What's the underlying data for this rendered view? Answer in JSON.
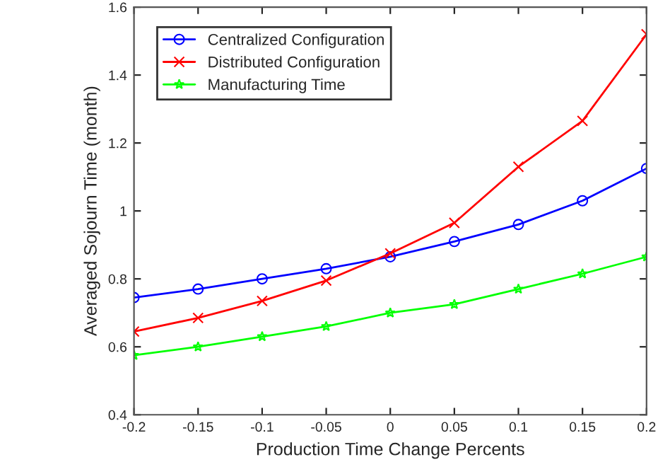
{
  "chart_data": {
    "type": "line",
    "xlabel": "Production Time Change Percents",
    "ylabel": "Averaged Sojourn Time (month)",
    "x": [
      -0.2,
      -0.15,
      -0.1,
      -0.05,
      0,
      0.05,
      0.1,
      0.15,
      0.2
    ],
    "series": [
      {
        "name": "Centralized Configuration",
        "color": "#0000ff",
        "marker": "circle",
        "values": [
          0.745,
          0.77,
          0.8,
          0.83,
          0.865,
          0.91,
          0.96,
          1.03,
          1.125
        ]
      },
      {
        "name": "Distributed Configuration",
        "color": "#ff0000",
        "marker": "cross",
        "values": [
          0.645,
          0.685,
          0.735,
          0.795,
          0.875,
          0.965,
          1.13,
          1.265,
          1.52
        ]
      },
      {
        "name": "Manufacturing Time",
        "color": "#00ff00",
        "marker": "star",
        "values": [
          0.575,
          0.6,
          0.63,
          0.66,
          0.7,
          0.725,
          0.77,
          0.815,
          0.865
        ]
      }
    ],
    "xlim": [
      -0.2,
      0.2
    ],
    "xticks": [
      -0.2,
      -0.15,
      -0.1,
      -0.05,
      0,
      0.05,
      0.1,
      0.15,
      0.2
    ],
    "ylim": [
      0.4,
      1.6
    ],
    "yticks": [
      0.4,
      0.6,
      0.8,
      1,
      1.2,
      1.4,
      1.6
    ],
    "legend": "top left",
    "grid": false,
    "line_style": "solid"
  }
}
